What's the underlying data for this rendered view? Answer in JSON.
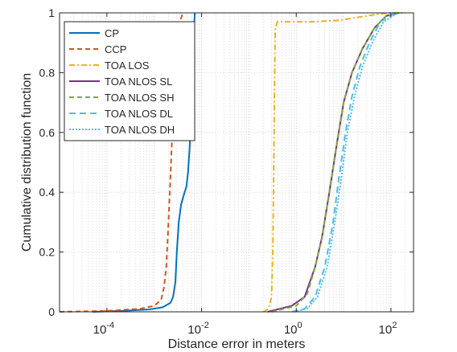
{
  "chart_data": {
    "type": "line",
    "xlabel": "Distance error in meters",
    "ylabel": "Cumulative distribution function",
    "x_scale": "log",
    "xlim": [
      1e-05,
      300
    ],
    "ylim": [
      0,
      1
    ],
    "grid": true,
    "legend_position": "top-left",
    "x_ticks": [
      {
        "value": 0.0001,
        "base": "10",
        "exp": "-4"
      },
      {
        "value": 0.01,
        "base": "10",
        "exp": "-2"
      },
      {
        "value": 1,
        "base": "10",
        "exp": "0"
      },
      {
        "value": 100,
        "base": "10",
        "exp": "2"
      }
    ],
    "y_ticks": [
      {
        "value": 0,
        "label": "0"
      },
      {
        "value": 0.2,
        "label": "0.2"
      },
      {
        "value": 0.4,
        "label": "0.4"
      },
      {
        "value": 0.6,
        "label": "0.6"
      },
      {
        "value": 0.8,
        "label": "0.8"
      },
      {
        "value": 1,
        "label": "1"
      }
    ],
    "series": [
      {
        "name": "CP",
        "color": "#0072BD",
        "dash": "solid",
        "points": [
          [
            5e-05,
            0
          ],
          [
            0.0002,
            0.003
          ],
          [
            0.0008,
            0.008
          ],
          [
            0.0015,
            0.015
          ],
          [
            0.0022,
            0.03
          ],
          [
            0.0025,
            0.05
          ],
          [
            0.0028,
            0.1
          ],
          [
            0.003,
            0.2
          ],
          [
            0.0033,
            0.3
          ],
          [
            0.0037,
            0.36
          ],
          [
            0.0042,
            0.39
          ],
          [
            0.0048,
            0.42
          ],
          [
            0.0052,
            0.47
          ],
          [
            0.0056,
            0.55
          ],
          [
            0.006,
            0.65
          ],
          [
            0.0064,
            0.8
          ],
          [
            0.0068,
            0.92
          ],
          [
            0.0072,
            1
          ]
        ]
      },
      {
        "name": "CCP",
        "color": "#D95319",
        "dash": "dashed",
        "points": [
          [
            1e-05,
            0
          ],
          [
            0.0001,
            0.003
          ],
          [
            0.0005,
            0.01
          ],
          [
            0.001,
            0.02
          ],
          [
            0.0014,
            0.04
          ],
          [
            0.0016,
            0.08
          ],
          [
            0.0018,
            0.15
          ],
          [
            0.002,
            0.3
          ],
          [
            0.0022,
            0.45
          ],
          [
            0.0024,
            0.6
          ],
          [
            0.0026,
            0.75
          ],
          [
            0.003,
            0.9
          ],
          [
            0.0035,
            0.97
          ],
          [
            0.004,
            1
          ]
        ]
      },
      {
        "name": "TOA LOS",
        "color": "#EDB120",
        "dash": "dashdot",
        "points": [
          [
            0.2,
            0
          ],
          [
            0.26,
            0.01
          ],
          [
            0.3,
            0.05
          ],
          [
            0.32,
            0.2
          ],
          [
            0.33,
            0.4
          ],
          [
            0.34,
            0.6
          ],
          [
            0.35,
            0.8
          ],
          [
            0.36,
            0.95
          ],
          [
            0.4,
            0.97
          ],
          [
            0.6,
            0.97
          ],
          [
            2,
            0.97
          ],
          [
            8,
            0.975
          ],
          [
            20,
            0.985
          ],
          [
            50,
            0.995
          ],
          [
            100,
            1
          ],
          [
            200,
            1
          ]
        ]
      },
      {
        "name": "TOA NLOS SL",
        "color": "#7E2F8E",
        "dash": "solid",
        "points": [
          [
            0.25,
            0
          ],
          [
            0.8,
            0.02
          ],
          [
            1.5,
            0.05
          ],
          [
            2.5,
            0.15
          ],
          [
            3.5,
            0.25
          ],
          [
            5,
            0.4
          ],
          [
            7,
            0.55
          ],
          [
            10,
            0.7
          ],
          [
            15,
            0.8
          ],
          [
            25,
            0.88
          ],
          [
            45,
            0.95
          ],
          [
            80,
            0.99
          ],
          [
            150,
            1
          ]
        ]
      },
      {
        "name": "TOA NLOS SH",
        "color": "#77AC30",
        "dash": "dashed",
        "points": [
          [
            0.3,
            0
          ],
          [
            1,
            0.02
          ],
          [
            1.7,
            0.06
          ],
          [
            2.5,
            0.15
          ],
          [
            3.5,
            0.25
          ],
          [
            5,
            0.4
          ],
          [
            7,
            0.55
          ],
          [
            10,
            0.7
          ],
          [
            15,
            0.8
          ],
          [
            25,
            0.88
          ],
          [
            45,
            0.95
          ],
          [
            80,
            0.99
          ],
          [
            150,
            1
          ]
        ]
      },
      {
        "name": "TOA NLOS DL",
        "color": "#4DBEEE",
        "dash": "dashed2",
        "points": [
          [
            0.8,
            0
          ],
          [
            1.5,
            0.01
          ],
          [
            2.5,
            0.05
          ],
          [
            4,
            0.15
          ],
          [
            6,
            0.3
          ],
          [
            8,
            0.45
          ],
          [
            11,
            0.6
          ],
          [
            15,
            0.72
          ],
          [
            22,
            0.82
          ],
          [
            35,
            0.9
          ],
          [
            60,
            0.97
          ],
          [
            120,
            1
          ]
        ]
      },
      {
        "name": "TOA NLOS DH",
        "color": "#4DBEEE",
        "dash": "dotted",
        "points": [
          [
            0.9,
            0
          ],
          [
            1.7,
            0.01
          ],
          [
            2.8,
            0.05
          ],
          [
            4.5,
            0.15
          ],
          [
            6.5,
            0.3
          ],
          [
            9,
            0.45
          ],
          [
            12,
            0.6
          ],
          [
            17,
            0.72
          ],
          [
            25,
            0.82
          ],
          [
            40,
            0.9
          ],
          [
            70,
            0.97
          ],
          [
            140,
            1
          ]
        ]
      }
    ]
  }
}
